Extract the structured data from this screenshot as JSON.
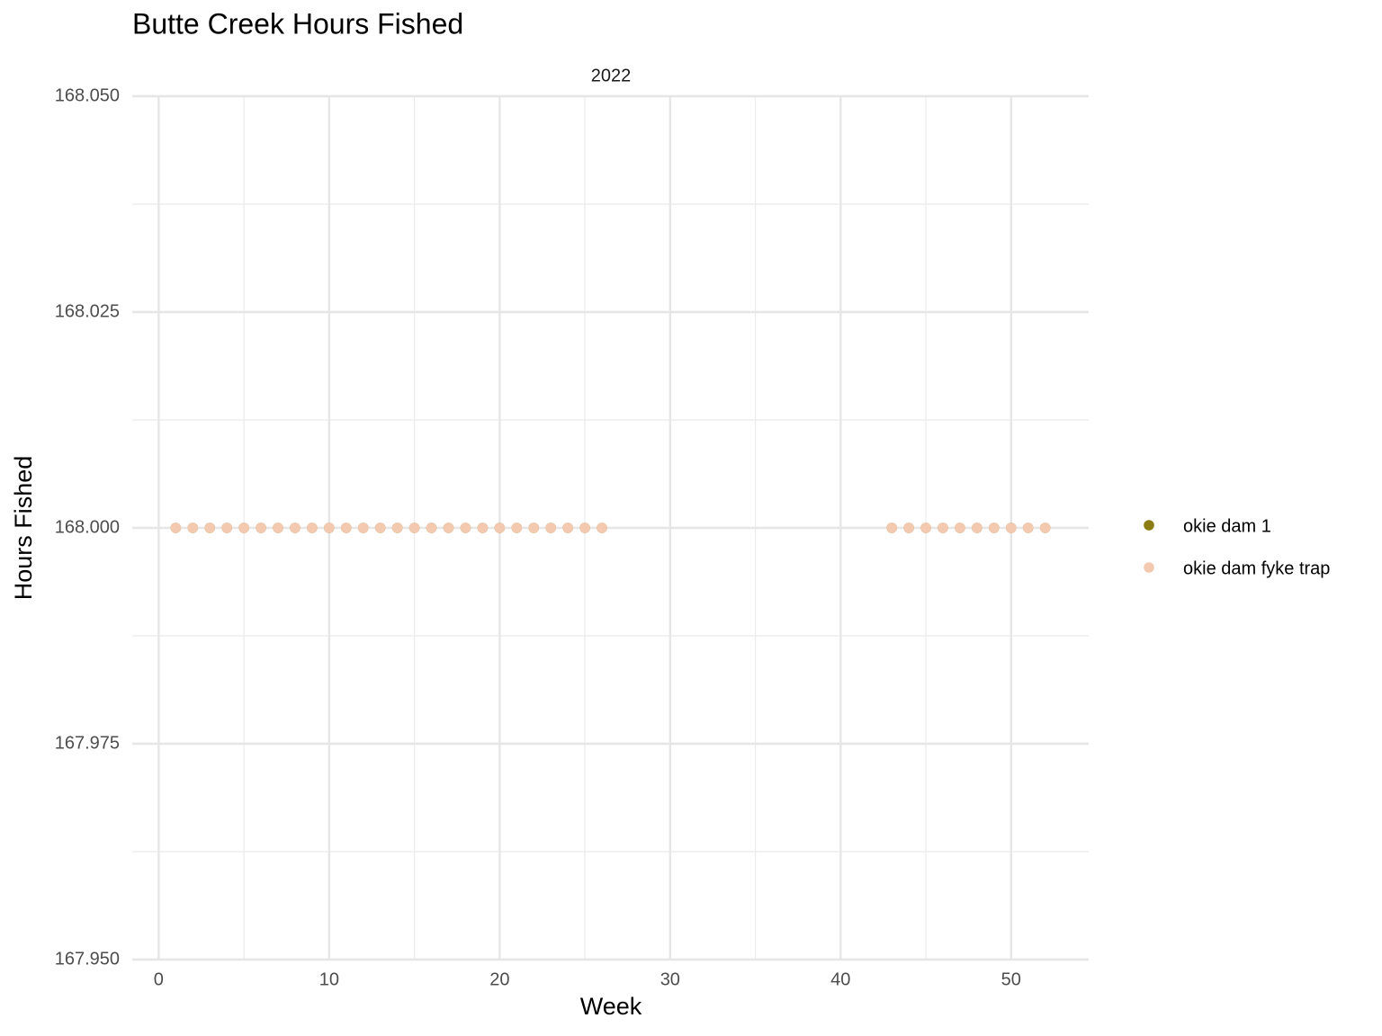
{
  "chart_data": {
    "type": "scatter",
    "title": "Butte Creek Hours Fished",
    "facet_label": "2022",
    "x_label": "Week",
    "y_label": "Hours Fished",
    "series": [
      {
        "name": "okie dam 1",
        "color": "#8b7d12",
        "x": [
          1,
          2,
          3,
          4,
          5,
          6,
          7,
          8,
          9,
          10,
          11,
          12,
          13,
          14,
          15,
          16,
          17,
          18,
          19,
          20,
          21,
          22,
          23,
          24,
          25,
          26,
          43,
          44,
          45,
          46,
          47,
          48,
          49,
          50,
          51,
          52
        ],
        "values": [
          168,
          168,
          168,
          168,
          168,
          168,
          168,
          168,
          168,
          168,
          168,
          168,
          168,
          168,
          168,
          168,
          168,
          168,
          168,
          168,
          168,
          168,
          168,
          168,
          168,
          168,
          168,
          168,
          168,
          168,
          168,
          168,
          168,
          168,
          168,
          168
        ]
      },
      {
        "name": "okie dam fyke trap",
        "color": "#f3c9b0",
        "x": [
          1,
          2,
          3,
          4,
          5,
          6,
          7,
          8,
          9,
          10,
          11,
          12,
          13,
          14,
          15,
          16,
          17,
          18,
          19,
          20,
          21,
          22,
          23,
          24,
          25,
          26,
          43,
          44,
          45,
          46,
          47,
          48,
          49,
          50,
          51,
          52
        ],
        "values": [
          168,
          168,
          168,
          168,
          168,
          168,
          168,
          168,
          168,
          168,
          168,
          168,
          168,
          168,
          168,
          168,
          168,
          168,
          168,
          168,
          168,
          168,
          168,
          168,
          168,
          168,
          168,
          168,
          168,
          168,
          168,
          168,
          168,
          168,
          168,
          168
        ]
      }
    ],
    "xlim": [
      -1.55,
      54.55
    ],
    "xticks": [
      0,
      10,
      20,
      30,
      40,
      50
    ],
    "x_minor_grid": [
      5,
      15,
      25,
      35,
      45
    ],
    "ylim": [
      167.95,
      168.05
    ],
    "yticks": [
      {
        "value": 167.95,
        "label": "167.950"
      },
      {
        "value": 167.975,
        "label": "167.975"
      },
      {
        "value": 168,
        "label": "168.000"
      },
      {
        "value": 168.025,
        "label": "168.025"
      },
      {
        "value": 168.05,
        "label": "168.050"
      }
    ],
    "y_minor_grid": [
      167.9625,
      167.9875,
      168.0125,
      168.0375
    ],
    "grid": true,
    "legend": "right"
  }
}
